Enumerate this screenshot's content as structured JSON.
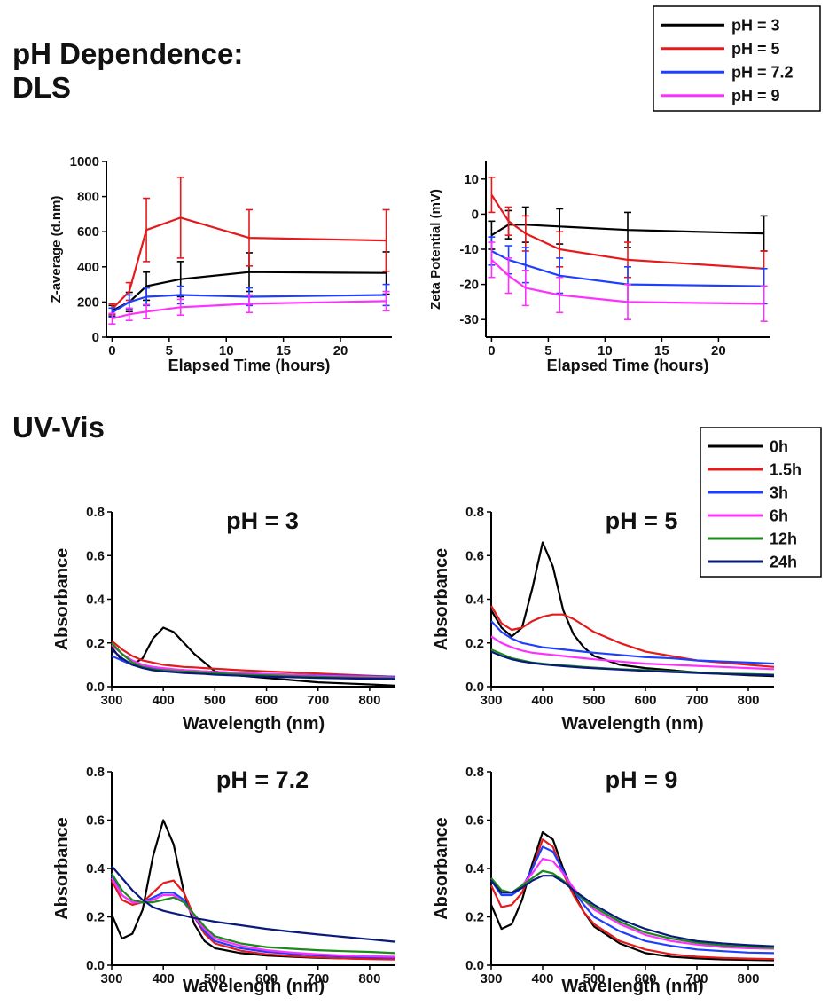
{
  "headings": {
    "dls_line1": "pH Dependence:",
    "dls_line2": "DLS",
    "uvvis": "UV-Vis"
  },
  "legends": {
    "ph": {
      "entries": [
        {
          "label": "pH = 3",
          "color": "#000000"
        },
        {
          "label": "pH = 5",
          "color": "#e41a1c"
        },
        {
          "label": "pH = 7.2",
          "color": "#1f3fff"
        },
        {
          "label": "pH = 9",
          "color": "#ff30ff"
        }
      ]
    },
    "time": {
      "entries": [
        {
          "label": "0h",
          "color": "#000000"
        },
        {
          "label": "1.5h",
          "color": "#e41a1c"
        },
        {
          "label": "3h",
          "color": "#1f3fff"
        },
        {
          "label": "6h",
          "color": "#ff30ff"
        },
        {
          "label": "12h",
          "color": "#1a8a1a"
        },
        {
          "label": "24h",
          "color": "#0a1a7a"
        }
      ]
    }
  },
  "chart_data": [
    {
      "id": "dls_z",
      "type": "line",
      "title": "",
      "xlabel": "Elapsed Time (hours)",
      "ylabel": "Z-average (d.nm)",
      "xlim": [
        -0.5,
        24.5
      ],
      "ylim": [
        0,
        1000
      ],
      "xticks": [
        0,
        5,
        10,
        15,
        20
      ],
      "yticks": [
        0,
        200,
        400,
        600,
        800,
        1000
      ],
      "x": [
        0,
        1.5,
        3,
        6,
        12,
        24
      ],
      "series": [
        {
          "name": "pH = 3",
          "color": "#000000",
          "values": [
            150,
            200,
            290,
            330,
            370,
            365
          ],
          "errors": [
            30,
            55,
            80,
            100,
            110,
            120
          ]
        },
        {
          "name": "pH = 5",
          "color": "#e41a1c",
          "values": [
            160,
            260,
            610,
            680,
            565,
            550
          ],
          "errors": [
            30,
            50,
            180,
            230,
            160,
            175
          ]
        },
        {
          "name": "pH = 7.2",
          "color": "#1f3fff",
          "values": [
            140,
            200,
            230,
            240,
            230,
            240
          ],
          "errors": [
            25,
            40,
            50,
            50,
            50,
            60
          ]
        },
        {
          "name": "pH = 9",
          "color": "#ff30ff",
          "values": [
            105,
            130,
            145,
            170,
            190,
            205
          ],
          "errors": [
            30,
            35,
            40,
            45,
            50,
            55
          ]
        }
      ]
    },
    {
      "id": "dls_zeta",
      "type": "line",
      "title": "",
      "xlabel": "Elapsed Time (hours)",
      "ylabel": "Zeta Potential (mV)",
      "xlim": [
        -0.5,
        24.5
      ],
      "ylim": [
        -35,
        15
      ],
      "xticks": [
        0,
        5,
        10,
        15,
        20
      ],
      "yticks": [
        -30,
        -20,
        -10,
        0,
        10
      ],
      "x": [
        0,
        1.5,
        3,
        6,
        12,
        24
      ],
      "series": [
        {
          "name": "pH = 3",
          "color": "#000000",
          "values": [
            -6,
            -3,
            -3,
            -3.5,
            -4.5,
            -5.5
          ],
          "errors": [
            4,
            4,
            5,
            5,
            5,
            5
          ]
        },
        {
          "name": "pH = 5",
          "color": "#e41a1c",
          "values": [
            5.5,
            -2,
            -5.5,
            -10,
            -13,
            -15.5
          ],
          "errors": [
            5,
            4,
            5,
            5,
            5,
            5
          ]
        },
        {
          "name": "pH = 7.2",
          "color": "#1f3fff",
          "values": [
            -10.5,
            -13,
            -14.5,
            -17.5,
            -20,
            -20.5
          ],
          "errors": [
            4,
            4,
            5,
            5,
            5,
            5
          ]
        },
        {
          "name": "pH = 9",
          "color": "#ff30ff",
          "values": [
            -13,
            -17.5,
            -21,
            -23,
            -25,
            -25.5
          ],
          "errors": [
            5,
            5,
            5,
            5,
            5,
            5
          ]
        }
      ]
    },
    {
      "id": "uv_ph3",
      "type": "line",
      "title": "pH = 3",
      "xlabel": "Wavelength (nm)",
      "ylabel": "Absorbance",
      "xlim": [
        300,
        850
      ],
      "ylim": [
        0,
        0.8
      ],
      "xticks": [
        300,
        400,
        500,
        600,
        700,
        800
      ],
      "yticks": [
        0.0,
        0.2,
        0.4,
        0.6,
        0.8
      ],
      "x": [
        300,
        320,
        340,
        360,
        380,
        400,
        420,
        440,
        460,
        480,
        500,
        550,
        600,
        650,
        700,
        750,
        800,
        850
      ],
      "series": [
        {
          "name": "0h",
          "color": "#000000",
          "values": [
            0.18,
            0.12,
            0.1,
            0.13,
            0.22,
            0.27,
            0.25,
            0.2,
            0.15,
            0.11,
            0.07,
            0.05,
            0.04,
            0.03,
            0.02,
            0.015,
            0.01,
            0.005
          ]
        },
        {
          "name": "1.5h",
          "color": "#e41a1c",
          "values": [
            0.21,
            0.17,
            0.14,
            0.12,
            0.11,
            0.1,
            0.095,
            0.09,
            0.088,
            0.085,
            0.082,
            0.075,
            0.07,
            0.065,
            0.06,
            0.055,
            0.05,
            0.045
          ]
        },
        {
          "name": "3h",
          "color": "#1f3fff",
          "values": [
            0.14,
            0.12,
            0.1,
            0.09,
            0.085,
            0.08,
            0.078,
            0.075,
            0.072,
            0.07,
            0.068,
            0.062,
            0.058,
            0.055,
            0.052,
            0.05,
            0.048,
            0.045
          ]
        },
        {
          "name": "6h",
          "color": "#ff30ff",
          "values": [
            0.19,
            0.15,
            0.12,
            0.1,
            0.09,
            0.085,
            0.08,
            0.076,
            0.073,
            0.07,
            0.067,
            0.062,
            0.058,
            0.054,
            0.05,
            0.047,
            0.045,
            0.042
          ]
        },
        {
          "name": "12h",
          "color": "#1a8a1a",
          "values": [
            0.2,
            0.15,
            0.11,
            0.09,
            0.08,
            0.075,
            0.072,
            0.07,
            0.067,
            0.064,
            0.062,
            0.056,
            0.052,
            0.048,
            0.045,
            0.042,
            0.04,
            0.038
          ]
        },
        {
          "name": "24h",
          "color": "#0a1a7a",
          "values": [
            0.17,
            0.13,
            0.1,
            0.085,
            0.075,
            0.07,
            0.066,
            0.062,
            0.06,
            0.058,
            0.055,
            0.05,
            0.046,
            0.043,
            0.04,
            0.038,
            0.036,
            0.035
          ]
        }
      ]
    },
    {
      "id": "uv_ph5",
      "type": "line",
      "title": "pH = 5",
      "xlabel": "Wavelength (nm)",
      "ylabel": "Absorbance",
      "xlim": [
        300,
        850
      ],
      "ylim": [
        0,
        0.8
      ],
      "xticks": [
        300,
        400,
        500,
        600,
        700,
        800
      ],
      "yticks": [
        0.0,
        0.2,
        0.4,
        0.6,
        0.8
      ],
      "x": [
        300,
        320,
        340,
        360,
        380,
        400,
        420,
        440,
        460,
        480,
        500,
        550,
        600,
        650,
        700,
        750,
        800,
        850
      ],
      "series": [
        {
          "name": "0h",
          "color": "#000000",
          "values": [
            0.35,
            0.27,
            0.23,
            0.27,
            0.45,
            0.66,
            0.55,
            0.35,
            0.24,
            0.18,
            0.14,
            0.1,
            0.085,
            0.075,
            0.065,
            0.058,
            0.052,
            0.048
          ]
        },
        {
          "name": "1.5h",
          "color": "#e41a1c",
          "values": [
            0.37,
            0.29,
            0.26,
            0.27,
            0.3,
            0.32,
            0.33,
            0.33,
            0.31,
            0.28,
            0.25,
            0.2,
            0.16,
            0.14,
            0.12,
            0.11,
            0.1,
            0.09
          ]
        },
        {
          "name": "3h",
          "color": "#1f3fff",
          "values": [
            0.3,
            0.25,
            0.22,
            0.2,
            0.19,
            0.18,
            0.175,
            0.17,
            0.165,
            0.16,
            0.155,
            0.145,
            0.135,
            0.13,
            0.12,
            0.115,
            0.11,
            0.105
          ]
        },
        {
          "name": "6h",
          "color": "#ff30ff",
          "values": [
            0.23,
            0.2,
            0.18,
            0.165,
            0.155,
            0.15,
            0.145,
            0.14,
            0.135,
            0.13,
            0.125,
            0.115,
            0.105,
            0.1,
            0.095,
            0.09,
            0.085,
            0.08
          ]
        },
        {
          "name": "12h",
          "color": "#1a8a1a",
          "values": [
            0.17,
            0.15,
            0.13,
            0.12,
            0.11,
            0.105,
            0.1,
            0.097,
            0.094,
            0.09,
            0.087,
            0.08,
            0.075,
            0.07,
            0.065,
            0.06,
            0.058,
            0.055
          ]
        },
        {
          "name": "24h",
          "color": "#0a1a7a",
          "values": [
            0.16,
            0.14,
            0.125,
            0.115,
            0.108,
            0.102,
            0.098,
            0.094,
            0.09,
            0.087,
            0.084,
            0.078,
            0.072,
            0.067,
            0.062,
            0.058,
            0.055,
            0.052
          ]
        }
      ]
    },
    {
      "id": "uv_ph72",
      "type": "line",
      "title": "pH = 7.2",
      "xlabel": "Wavelength (nm)",
      "ylabel": "Absorbance",
      "xlim": [
        300,
        850
      ],
      "ylim": [
        0,
        0.8
      ],
      "xticks": [
        300,
        400,
        500,
        600,
        700,
        800
      ],
      "yticks": [
        0.0,
        0.2,
        0.4,
        0.6,
        0.8
      ],
      "x": [
        300,
        320,
        340,
        360,
        380,
        400,
        420,
        440,
        460,
        480,
        500,
        550,
        600,
        650,
        700,
        750,
        800,
        850
      ],
      "series": [
        {
          "name": "0h",
          "color": "#000000",
          "values": [
            0.21,
            0.11,
            0.13,
            0.23,
            0.45,
            0.6,
            0.5,
            0.3,
            0.17,
            0.1,
            0.07,
            0.05,
            0.04,
            0.035,
            0.03,
            0.028,
            0.026,
            0.025
          ]
        },
        {
          "name": "1.5h",
          "color": "#e41a1c",
          "values": [
            0.35,
            0.27,
            0.25,
            0.26,
            0.3,
            0.34,
            0.35,
            0.3,
            0.2,
            0.13,
            0.09,
            0.06,
            0.045,
            0.038,
            0.032,
            0.028,
            0.025,
            0.023
          ]
        },
        {
          "name": "3h",
          "color": "#1f3fff",
          "values": [
            0.37,
            0.29,
            0.26,
            0.26,
            0.28,
            0.3,
            0.3,
            0.27,
            0.2,
            0.14,
            0.1,
            0.07,
            0.055,
            0.047,
            0.04,
            0.036,
            0.033,
            0.031
          ]
        },
        {
          "name": "6h",
          "color": "#ff30ff",
          "values": [
            0.36,
            0.29,
            0.26,
            0.26,
            0.27,
            0.29,
            0.29,
            0.26,
            0.2,
            0.15,
            0.11,
            0.08,
            0.062,
            0.052,
            0.045,
            0.04,
            0.037,
            0.035
          ]
        },
        {
          "name": "12h",
          "color": "#1a8a1a",
          "values": [
            0.38,
            0.31,
            0.27,
            0.26,
            0.26,
            0.27,
            0.28,
            0.26,
            0.21,
            0.16,
            0.12,
            0.09,
            0.075,
            0.068,
            0.062,
            0.058,
            0.055,
            0.05
          ]
        },
        {
          "name": "24h",
          "color": "#0a1a7a",
          "values": [
            0.41,
            0.36,
            0.31,
            0.27,
            0.24,
            0.225,
            0.215,
            0.205,
            0.195,
            0.188,
            0.18,
            0.165,
            0.15,
            0.138,
            0.127,
            0.117,
            0.107,
            0.097
          ]
        }
      ]
    },
    {
      "id": "uv_ph9",
      "type": "line",
      "title": "pH = 9",
      "xlabel": "Wavelength (nm)",
      "ylabel": "Absorbance",
      "xlim": [
        300,
        850
      ],
      "ylim": [
        0,
        0.8
      ],
      "xticks": [
        300,
        400,
        500,
        600,
        700,
        800
      ],
      "yticks": [
        0.0,
        0.2,
        0.4,
        0.6,
        0.8
      ],
      "x": [
        300,
        320,
        340,
        360,
        380,
        400,
        420,
        440,
        460,
        480,
        500,
        550,
        600,
        650,
        700,
        750,
        800,
        850
      ],
      "series": [
        {
          "name": "0h",
          "color": "#000000",
          "values": [
            0.25,
            0.15,
            0.17,
            0.27,
            0.42,
            0.55,
            0.52,
            0.4,
            0.3,
            0.22,
            0.16,
            0.09,
            0.05,
            0.035,
            0.028,
            0.024,
            0.022,
            0.02
          ]
        },
        {
          "name": "1.5h",
          "color": "#e41a1c",
          "values": [
            0.33,
            0.24,
            0.25,
            0.3,
            0.4,
            0.52,
            0.49,
            0.38,
            0.29,
            0.22,
            0.17,
            0.1,
            0.065,
            0.045,
            0.035,
            0.03,
            0.027,
            0.025
          ]
        },
        {
          "name": "3h",
          "color": "#1f3fff",
          "values": [
            0.35,
            0.29,
            0.29,
            0.32,
            0.4,
            0.49,
            0.47,
            0.39,
            0.31,
            0.25,
            0.2,
            0.14,
            0.1,
            0.08,
            0.065,
            0.058,
            0.052,
            0.05
          ]
        },
        {
          "name": "6h",
          "color": "#ff30ff",
          "values": [
            0.36,
            0.3,
            0.3,
            0.33,
            0.38,
            0.44,
            0.43,
            0.38,
            0.32,
            0.27,
            0.23,
            0.17,
            0.125,
            0.1,
            0.085,
            0.075,
            0.07,
            0.068
          ]
        },
        {
          "name": "12h",
          "color": "#1a8a1a",
          "values": [
            0.36,
            0.31,
            0.3,
            0.33,
            0.36,
            0.39,
            0.38,
            0.35,
            0.31,
            0.27,
            0.24,
            0.18,
            0.135,
            0.11,
            0.093,
            0.082,
            0.076,
            0.072
          ]
        },
        {
          "name": "24h",
          "color": "#0a1a7a",
          "values": [
            0.35,
            0.3,
            0.3,
            0.32,
            0.35,
            0.37,
            0.37,
            0.345,
            0.31,
            0.28,
            0.25,
            0.19,
            0.15,
            0.12,
            0.1,
            0.09,
            0.083,
            0.078
          ]
        }
      ]
    }
  ]
}
